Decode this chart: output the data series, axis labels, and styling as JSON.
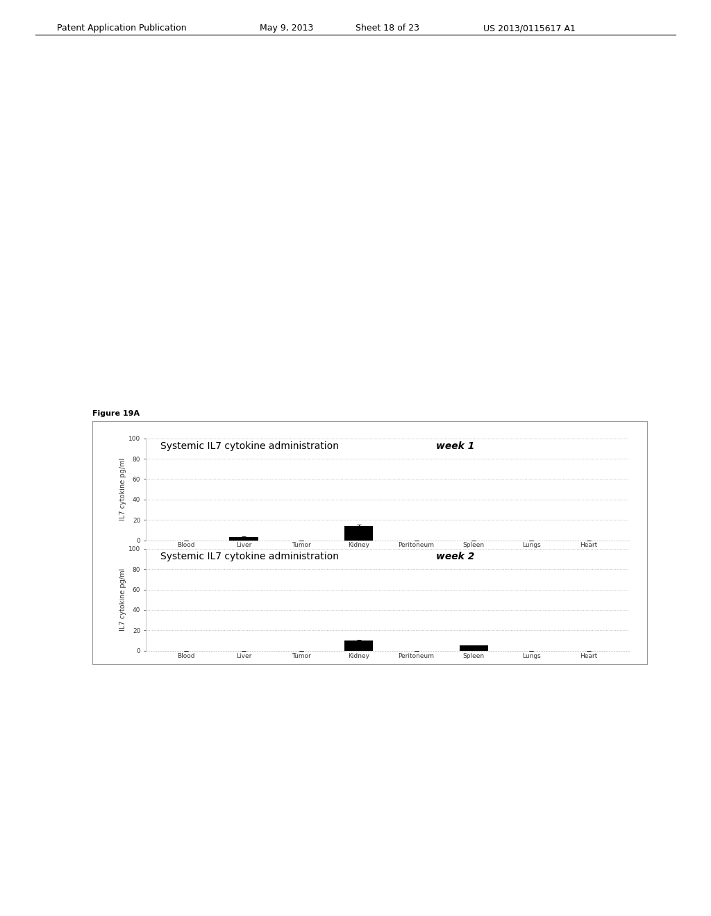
{
  "categories": [
    "Blood",
    "Liver",
    "Tumor",
    "Kidney",
    "Peritoneum",
    "Spleen",
    "Lungs",
    "Heart"
  ],
  "week1_values": [
    0.0,
    3.0,
    0.0,
    14.0,
    0.0,
    0.0,
    0.0,
    0.0
  ],
  "week1_errors": [
    0.0,
    0.5,
    0.0,
    1.5,
    0.0,
    0.0,
    0.0,
    0.0
  ],
  "week2_values": [
    0.0,
    0.0,
    0.0,
    10.0,
    0.0,
    5.0,
    0.0,
    0.0
  ],
  "week2_errors": [
    0.0,
    0.0,
    0.0,
    1.0,
    0.0,
    0.5,
    0.0,
    0.0
  ],
  "title1_normal": "Systemic IL7 cytokine administration ",
  "title1_bold": "week 1",
  "title2_normal": "Systemic IL7 cytokine administration ",
  "title2_bold": "week 2",
  "ylabel": "IL7 cytokine pg/ml",
  "ylim": [
    0,
    100
  ],
  "yticks": [
    0,
    20,
    40,
    60,
    80,
    100
  ],
  "bar_color": "#000000",
  "bar_width": 0.5,
  "figure_label": "Figure 19A",
  "header_text": "Patent Application Publication",
  "header_date": "May 9, 2013",
  "header_sheet": "Sheet 18 of 23",
  "header_patent": "US 2013/0115617 A1",
  "bg_color": "#ffffff"
}
